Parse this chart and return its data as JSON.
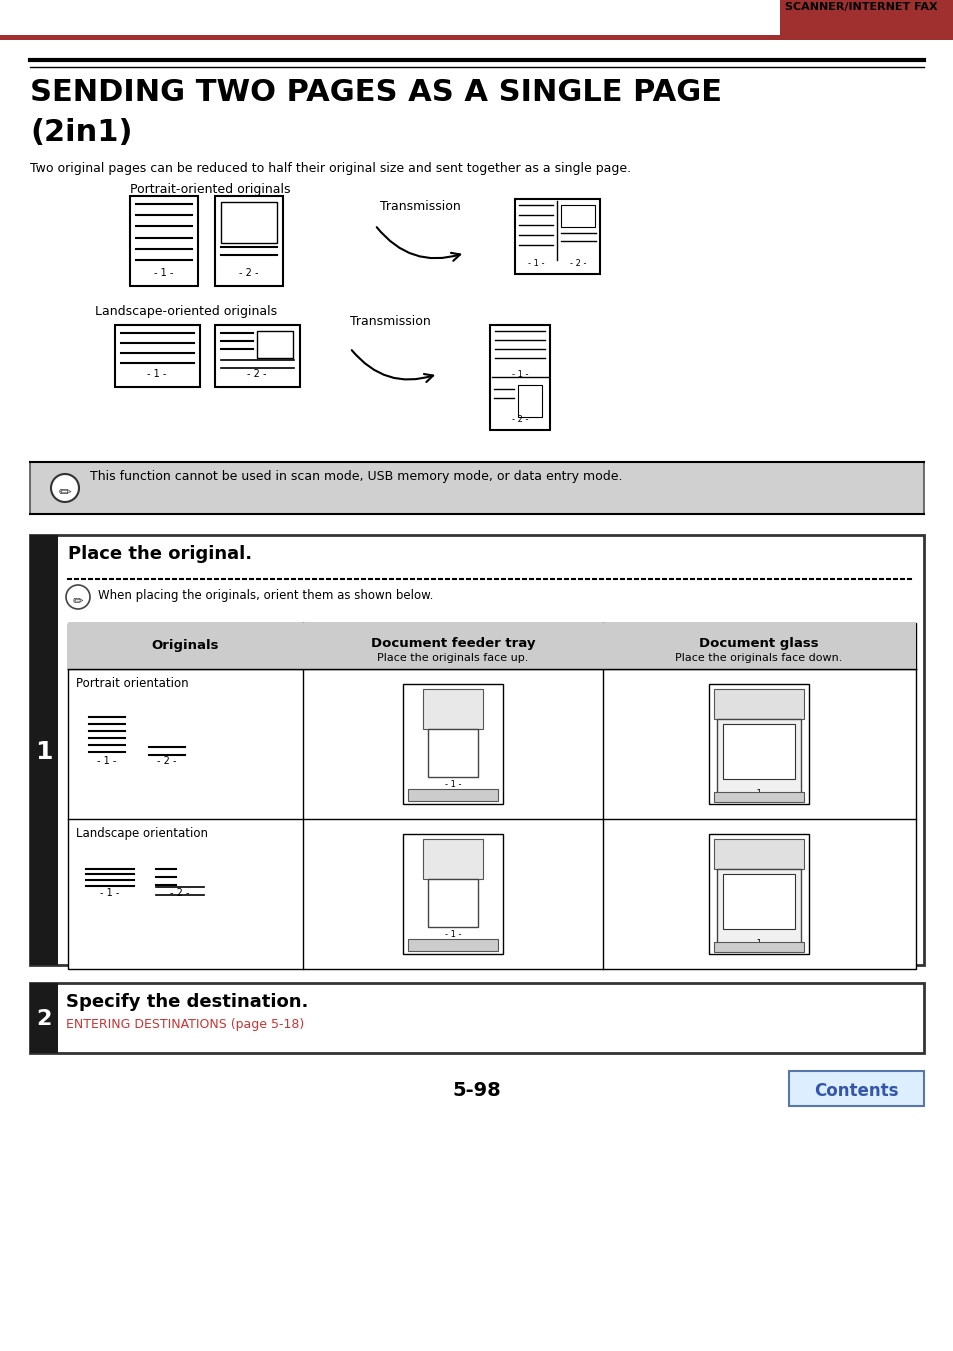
{
  "page_bg": "#ffffff",
  "header_text": "SCANNER/INTERNET FAX",
  "header_bar_color": "#a03030",
  "title": "SENDING TWO PAGES AS A SINGLE PAGE",
  "title2": "(2in1)",
  "subtitle": "Two original pages can be reduced to half their original size and sent together as a single page.",
  "portrait_label": "Portrait-oriented originals",
  "landscape_label": "Landscape-oriented originals",
  "transmission_label": "Transmission",
  "note_text": "This function cannot be used in scan mode, USB memory mode, or data entry mode.",
  "note_bg": "#d0d0d0",
  "step1_title": "Place the original.",
  "step1_note": "When placing the originals, orient them as shown below.",
  "col1_header": "Originals",
  "col2_header": "Document feeder tray",
  "col2_sub": "Place the originals face up.",
  "col3_header": "Document glass",
  "col3_sub": "Place the originals face down.",
  "row1_label": "Portrait orientation",
  "row2_label": "Landscape orientation",
  "step2_title": "Specify the destination.",
  "step2_link": "ENTERING DESTINATIONS (page 5-18)",
  "step2_link_color": "#cc3333",
  "page_number": "5-98",
  "contents_text": "Contents",
  "contents_btn_color": "#3355aa",
  "step_bar_color": "#1a1a1a",
  "step_number_1": "1",
  "step_number_2": "2",
  "table_header_bg": "#cccccc",
  "double_line_color": "#000000"
}
